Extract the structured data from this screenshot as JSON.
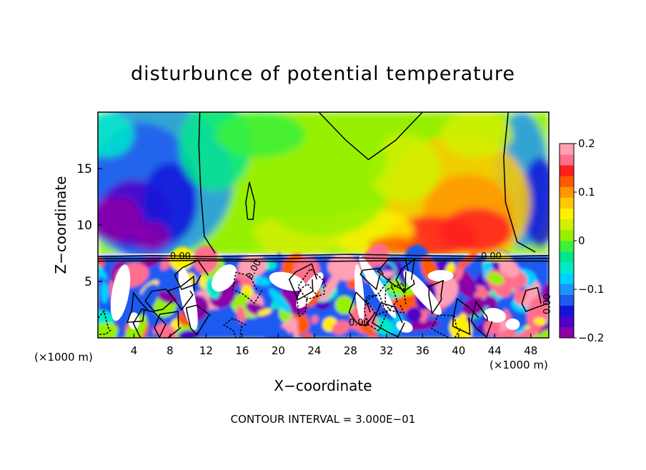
{
  "chart_data": {
    "type": "heatmap",
    "title": "disturbunce of potential temperature",
    "xlabel": "X−coordinate",
    "ylabel": "Z−coordinate",
    "x_unit_left": "(×1000 m)",
    "x_unit_right": "(×1000 m)",
    "xlim": [
      0,
      50
    ],
    "ylim": [
      0,
      20
    ],
    "x_ticks": [
      4,
      8,
      12,
      16,
      20,
      24,
      28,
      32,
      36,
      40,
      44,
      48
    ],
    "y_ticks": [
      5,
      10,
      15
    ],
    "colorbar": {
      "min": -0.2,
      "max": 0.2,
      "ticks": [
        0.2,
        0.1,
        0,
        -0.1,
        -0.2
      ],
      "tick_labels": [
        "0.2",
        "0.1",
        "0",
        "−0.1",
        "−0.2"
      ],
      "colors": [
        "#8b00a8",
        "#5000c8",
        "#1414d8",
        "#1e5af0",
        "#1e96f8",
        "#00d2ff",
        "#00eaca",
        "#00e68c",
        "#3cf03c",
        "#96f000",
        "#d2f000",
        "#fff000",
        "#ffc800",
        "#ff9600",
        "#ff5a00",
        "#ff1e1e",
        "#ff6e8c",
        "#ffa0b4"
      ]
    },
    "contour_labels": [
      "0.00",
      "0.00",
      "0.00",
      "0.00",
      "0.00"
    ],
    "footer": "CONTOUR INTERVAL = 3.000E−01",
    "grid": false
  }
}
